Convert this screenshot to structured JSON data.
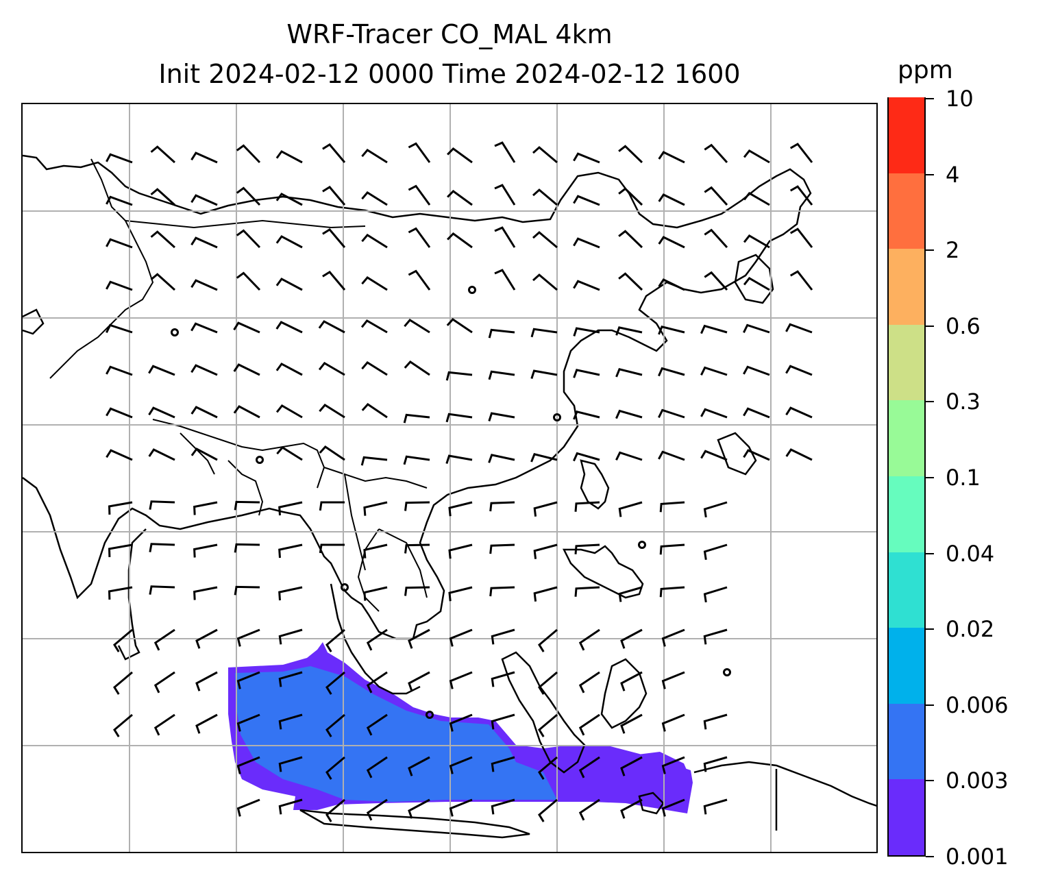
{
  "title": {
    "line1": "WRF-Tracer CO_MAL 4km",
    "line2": "Init 2024-02-12 0000 Time 2024-02-12 1600"
  },
  "colorbar": {
    "units": "ppm",
    "levels": [
      "0.001",
      "0.003",
      "0.006",
      "0.02",
      "0.04",
      "0.1",
      "0.3",
      "0.6",
      "2",
      "4",
      "10"
    ],
    "colors": [
      "#6a2cfb",
      "#3474f3",
      "#00b1eb",
      "#2fe0d2",
      "#66fcbe",
      "#98fa97",
      "#cde087",
      "#fdb05f",
      "#ff6f3e",
      "#fe2a16"
    ]
  },
  "map": {
    "field": "CO_MAL tracer concentration",
    "plume_color_low": "#6a2cfb",
    "plume_color_mid": "#3474f3",
    "gridlines": true,
    "wind_barbs": true
  }
}
